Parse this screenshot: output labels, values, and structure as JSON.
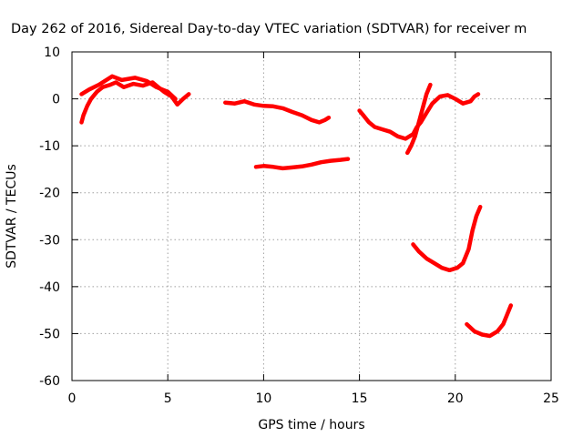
{
  "chart_data": {
    "type": "line",
    "title": "Day 262 of 2016, Sidereal Day-to-day VTEC variation (SDTVAR) for receiver m",
    "xlabel": "GPS time / hours",
    "ylabel": "SDTVAR / TECUs",
    "xlim": [
      0,
      25
    ],
    "ylim": [
      -60,
      10
    ],
    "xticks": [
      "0",
      "5",
      "10",
      "15",
      "20",
      "25"
    ],
    "yticks": [
      "10",
      "0",
      "-10",
      "-20",
      "-30",
      "-40",
      "-50",
      "-60"
    ],
    "grid": true,
    "series_color": "#ff0000",
    "series": [
      {
        "values": [
          [
            0.5,
            -5
          ],
          [
            0.6,
            -3.5
          ],
          [
            0.8,
            -1.5
          ],
          [
            1.0,
            0
          ],
          [
            1.3,
            1.5
          ],
          [
            1.6,
            2.5
          ],
          [
            2.0,
            3
          ],
          [
            2.3,
            3.5
          ],
          [
            2.7,
            2.5
          ],
          [
            3.2,
            3.2
          ],
          [
            3.7,
            2.8
          ],
          [
            4.2,
            3.5
          ],
          [
            4.5,
            2.5
          ],
          [
            4.8,
            1.5
          ],
          [
            5.2,
            0.5
          ],
          [
            5.5,
            -1.2
          ],
          [
            5.8,
            0
          ],
          [
            6.1,
            1
          ]
        ]
      },
      {
        "values": [
          [
            0.5,
            1
          ],
          [
            0.9,
            2
          ],
          [
            1.4,
            3
          ],
          [
            2.1,
            4.8
          ],
          [
            2.6,
            4
          ],
          [
            3.3,
            4.5
          ],
          [
            3.9,
            3.8
          ],
          [
            4.4,
            2.5
          ],
          [
            5.0,
            1.5
          ],
          [
            5.4,
            0
          ]
        ]
      },
      {
        "values": [
          [
            8.0,
            -0.8
          ],
          [
            8.5,
            -1
          ],
          [
            9.0,
            -0.5
          ],
          [
            9.5,
            -1.2
          ],
          [
            10.0,
            -1.5
          ],
          [
            10.5,
            -1.6
          ],
          [
            11.0,
            -2
          ],
          [
            11.5,
            -2.8
          ],
          [
            12.0,
            -3.5
          ],
          [
            12.5,
            -4.5
          ],
          [
            12.9,
            -5
          ],
          [
            13.2,
            -4.5
          ],
          [
            13.4,
            -4
          ]
        ]
      },
      {
        "values": [
          [
            9.6,
            -14.5
          ],
          [
            10.0,
            -14.3
          ],
          [
            10.5,
            -14.5
          ],
          [
            11.0,
            -14.8
          ],
          [
            11.5,
            -14.6
          ],
          [
            12.0,
            -14.4
          ],
          [
            12.5,
            -14
          ],
          [
            13.0,
            -13.5
          ],
          [
            13.5,
            -13.2
          ],
          [
            14.0,
            -13
          ],
          [
            14.4,
            -12.8
          ]
        ]
      },
      {
        "values": [
          [
            15.0,
            -2.5
          ],
          [
            15.2,
            -3.5
          ],
          [
            15.5,
            -5
          ],
          [
            15.8,
            -6
          ],
          [
            16.2,
            -6.5
          ],
          [
            16.6,
            -7
          ],
          [
            17.0,
            -8
          ],
          [
            17.4,
            -8.5
          ],
          [
            17.8,
            -7.5
          ],
          [
            18.0,
            -6
          ],
          [
            18.2,
            -5
          ],
          [
            18.5,
            -3
          ],
          [
            18.8,
            -1
          ],
          [
            19.2,
            0.5
          ],
          [
            19.6,
            0.8
          ],
          [
            20.0,
            0
          ],
          [
            20.4,
            -1
          ],
          [
            20.8,
            -0.5
          ],
          [
            21.0,
            0.5
          ],
          [
            21.2,
            1
          ]
        ]
      },
      {
        "values": [
          [
            17.5,
            -11.5
          ],
          [
            17.7,
            -10
          ],
          [
            17.9,
            -8
          ],
          [
            18.1,
            -5
          ],
          [
            18.3,
            -2
          ],
          [
            18.5,
            1
          ],
          [
            18.7,
            3
          ]
        ]
      },
      {
        "values": [
          [
            17.8,
            -31
          ],
          [
            18.1,
            -32.5
          ],
          [
            18.5,
            -34
          ],
          [
            18.9,
            -35
          ],
          [
            19.3,
            -36
          ],
          [
            19.7,
            -36.5
          ],
          [
            20.1,
            -36
          ],
          [
            20.4,
            -35
          ],
          [
            20.7,
            -32
          ],
          [
            20.9,
            -28
          ],
          [
            21.1,
            -25
          ],
          [
            21.3,
            -23
          ]
        ]
      },
      {
        "values": [
          [
            20.6,
            -48
          ],
          [
            21.0,
            -49.5
          ],
          [
            21.4,
            -50.2
          ],
          [
            21.8,
            -50.5
          ],
          [
            22.2,
            -49.5
          ],
          [
            22.5,
            -48
          ],
          [
            22.7,
            -46
          ],
          [
            22.9,
            -44
          ]
        ]
      }
    ]
  }
}
